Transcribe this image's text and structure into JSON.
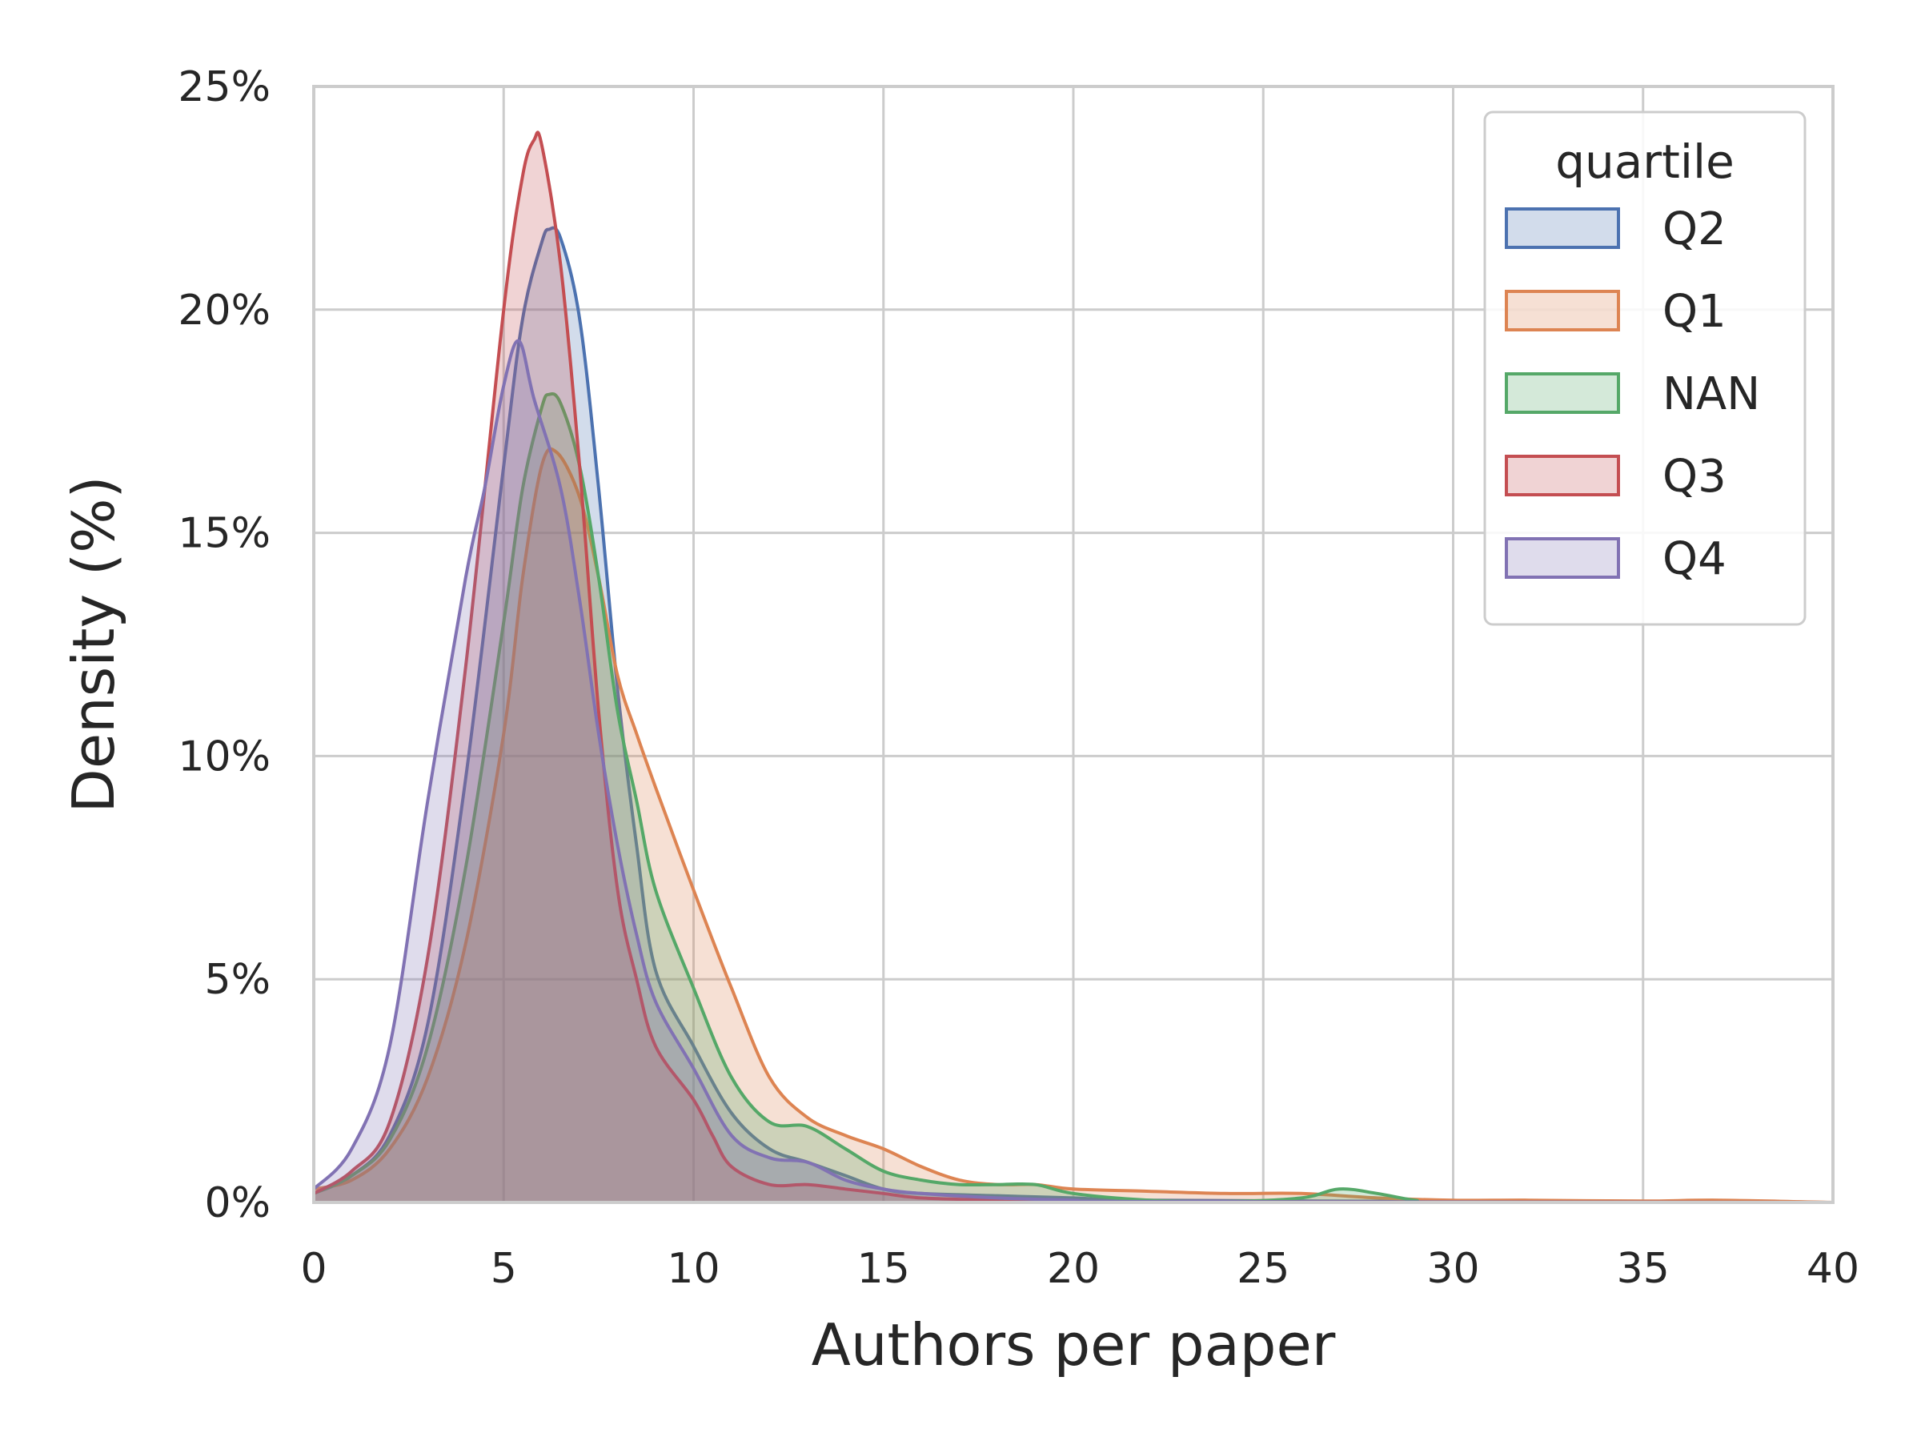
{
  "chart_data": {
    "type": "area",
    "title": "",
    "xlabel": "Authors per paper",
    "ylabel": "Density (%)",
    "xlim": [
      0,
      40
    ],
    "ylim": [
      0,
      25
    ],
    "x_ticks": [
      0,
      5,
      10,
      15,
      20,
      25,
      30,
      35,
      40
    ],
    "x_tick_labels": [
      "0",
      "5",
      "10",
      "15",
      "20",
      "25",
      "30",
      "35",
      "40"
    ],
    "y_ticks": [
      0,
      5,
      10,
      15,
      20,
      25
    ],
    "y_tick_labels": [
      "0%",
      "5%",
      "10%",
      "15%",
      "20%",
      "25%"
    ],
    "grid": true,
    "legend": {
      "title": "quartile",
      "position": "top-right"
    },
    "series": [
      {
        "name": "Q2",
        "color": "#4c72b0",
        "points": [
          [
            0,
            0.2
          ],
          [
            1,
            0.6
          ],
          [
            2,
            1.5
          ],
          [
            3,
            4.0
          ],
          [
            4,
            9.5
          ],
          [
            5,
            16.5
          ],
          [
            5.5,
            19.8
          ],
          [
            6,
            21.5
          ],
          [
            6.2,
            21.8
          ],
          [
            6.5,
            21.6
          ],
          [
            7,
            19.8
          ],
          [
            7.5,
            16.0
          ],
          [
            8,
            11.5
          ],
          [
            8.5,
            8.0
          ],
          [
            9,
            5.2
          ],
          [
            10,
            3.5
          ],
          [
            11,
            2.0
          ],
          [
            12,
            1.2
          ],
          [
            13,
            0.9
          ],
          [
            14,
            0.6
          ],
          [
            15,
            0.3
          ],
          [
            16,
            0.2
          ],
          [
            18,
            0.15
          ],
          [
            20,
            0.1
          ],
          [
            22,
            0.05
          ],
          [
            30,
            0.02
          ],
          [
            40,
            0.0
          ]
        ]
      },
      {
        "name": "Q1",
        "color": "#dd8452",
        "points": [
          [
            0,
            0.3
          ],
          [
            1,
            0.5
          ],
          [
            2,
            1.2
          ],
          [
            3,
            2.8
          ],
          [
            4,
            5.8
          ],
          [
            5,
            10.5
          ],
          [
            5.5,
            14.0
          ],
          [
            6,
            16.5
          ],
          [
            6.4,
            16.8
          ],
          [
            7,
            15.8
          ],
          [
            7.5,
            14.0
          ],
          [
            8,
            11.8
          ],
          [
            8.5,
            10.5
          ],
          [
            9,
            9.3
          ],
          [
            10,
            7.0
          ],
          [
            11,
            4.8
          ],
          [
            12,
            2.8
          ],
          [
            13,
            1.9
          ],
          [
            14,
            1.5
          ],
          [
            15,
            1.2
          ],
          [
            16,
            0.8
          ],
          [
            17,
            0.5
          ],
          [
            18,
            0.4
          ],
          [
            19,
            0.4
          ],
          [
            20,
            0.3
          ],
          [
            22,
            0.25
          ],
          [
            24,
            0.2
          ],
          [
            26,
            0.2
          ],
          [
            28,
            0.1
          ],
          [
            30,
            0.05
          ],
          [
            32,
            0.05
          ],
          [
            35,
            0.03
          ],
          [
            37,
            0.05
          ],
          [
            40,
            0.0
          ]
        ]
      },
      {
        "name": "NAN",
        "color": "#55a868",
        "points": [
          [
            0,
            0.2
          ],
          [
            1,
            0.6
          ],
          [
            2,
            1.4
          ],
          [
            3,
            3.5
          ],
          [
            4,
            7.5
          ],
          [
            5,
            13.0
          ],
          [
            5.5,
            16.0
          ],
          [
            6,
            17.8
          ],
          [
            6.2,
            18.1
          ],
          [
            6.5,
            17.9
          ],
          [
            7,
            16.5
          ],
          [
            7.5,
            14.0
          ],
          [
            8,
            11.0
          ],
          [
            8.5,
            9.0
          ],
          [
            9,
            7.0
          ],
          [
            10,
            4.8
          ],
          [
            11,
            2.8
          ],
          [
            12,
            1.8
          ],
          [
            13,
            1.7
          ],
          [
            14,
            1.2
          ],
          [
            15,
            0.7
          ],
          [
            16,
            0.5
          ],
          [
            17,
            0.4
          ],
          [
            18,
            0.4
          ],
          [
            19,
            0.4
          ],
          [
            20,
            0.2
          ],
          [
            22,
            0.05
          ],
          [
            24,
            0.02
          ],
          [
            26,
            0.1
          ],
          [
            27,
            0.3
          ],
          [
            28,
            0.2
          ],
          [
            29,
            0.05
          ],
          [
            30,
            0.0
          ],
          [
            40,
            0.0
          ]
        ]
      },
      {
        "name": "Q3",
        "color": "#c44e52",
        "points": [
          [
            0,
            0.2
          ],
          [
            1,
            0.7
          ],
          [
            2,
            1.8
          ],
          [
            3,
            5.5
          ],
          [
            4,
            12.0
          ],
          [
            5,
            20.0
          ],
          [
            5.5,
            23.0
          ],
          [
            5.8,
            23.8
          ],
          [
            6,
            23.7
          ],
          [
            6.5,
            21.0
          ],
          [
            7,
            16.5
          ],
          [
            7.5,
            11.0
          ],
          [
            8,
            7.0
          ],
          [
            8.5,
            5.0
          ],
          [
            9,
            3.5
          ],
          [
            10,
            2.3
          ],
          [
            10.5,
            1.5
          ],
          [
            11,
            0.8
          ],
          [
            12,
            0.4
          ],
          [
            13,
            0.4
          ],
          [
            14,
            0.3
          ],
          [
            15,
            0.2
          ],
          [
            16,
            0.1
          ],
          [
            18,
            0.05
          ],
          [
            20,
            0.02
          ],
          [
            40,
            0.0
          ]
        ]
      },
      {
        "name": "Q4",
        "color": "#8172b3",
        "points": [
          [
            0,
            0.3
          ],
          [
            1,
            1.2
          ],
          [
            2,
            3.5
          ],
          [
            3,
            9.0
          ],
          [
            4,
            14.0
          ],
          [
            4.5,
            16.0
          ],
          [
            5,
            18.3
          ],
          [
            5.4,
            19.3
          ],
          [
            5.8,
            18.0
          ],
          [
            6.5,
            16.0
          ],
          [
            7,
            13.5
          ],
          [
            7.5,
            10.5
          ],
          [
            8,
            8.0
          ],
          [
            8.5,
            6.0
          ],
          [
            9,
            4.5
          ],
          [
            10,
            3.0
          ],
          [
            11,
            1.5
          ],
          [
            12,
            1.0
          ],
          [
            13,
            0.9
          ],
          [
            14,
            0.5
          ],
          [
            15,
            0.3
          ],
          [
            16,
            0.2
          ],
          [
            18,
            0.1
          ],
          [
            20,
            0.05
          ],
          [
            22,
            0.02
          ],
          [
            40,
            0.0
          ]
        ]
      }
    ]
  }
}
